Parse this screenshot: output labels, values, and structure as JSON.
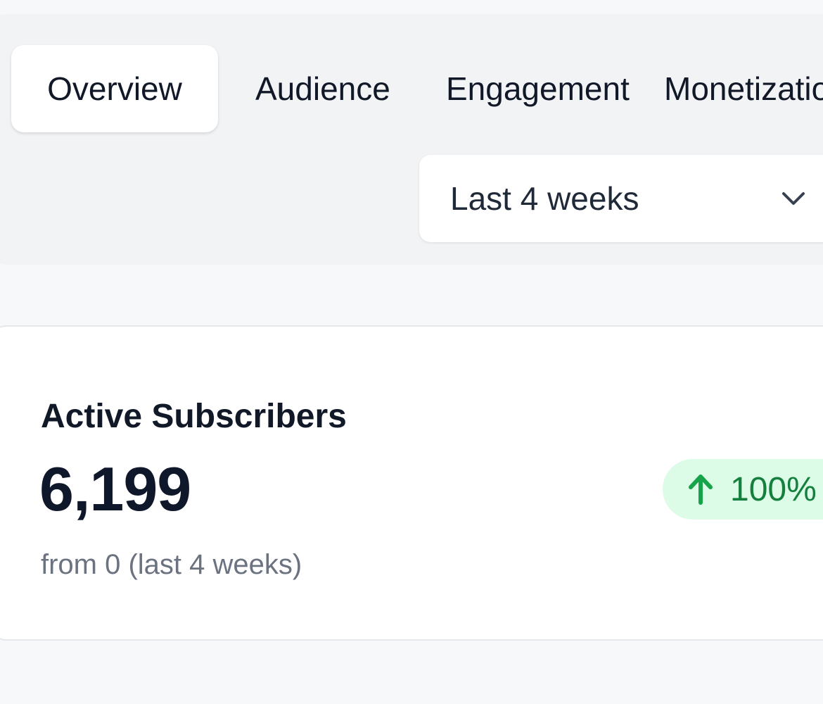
{
  "tabs": [
    {
      "label": "Overview",
      "active": true
    },
    {
      "label": "Audience",
      "active": false
    },
    {
      "label": "Engagement",
      "active": false
    },
    {
      "label": "Monetization",
      "active": false
    }
  ],
  "period_select": {
    "selected": "Last 4 weeks",
    "icon": "chevron-down-icon"
  },
  "stat_card": {
    "title": "Active Subscribers",
    "value": "6,199",
    "subtitle": "from 0 (last 4 weeks)",
    "change": {
      "label": "100%",
      "direction": "up",
      "icon": "arrow-up-icon",
      "color": "#16a34a",
      "background": "#dcfce7"
    }
  },
  "colors": {
    "text_primary": "#111827",
    "text_muted": "#6b7280",
    "panel_bg": "#f2f3f5",
    "page_bg": "#f7f8fa"
  }
}
